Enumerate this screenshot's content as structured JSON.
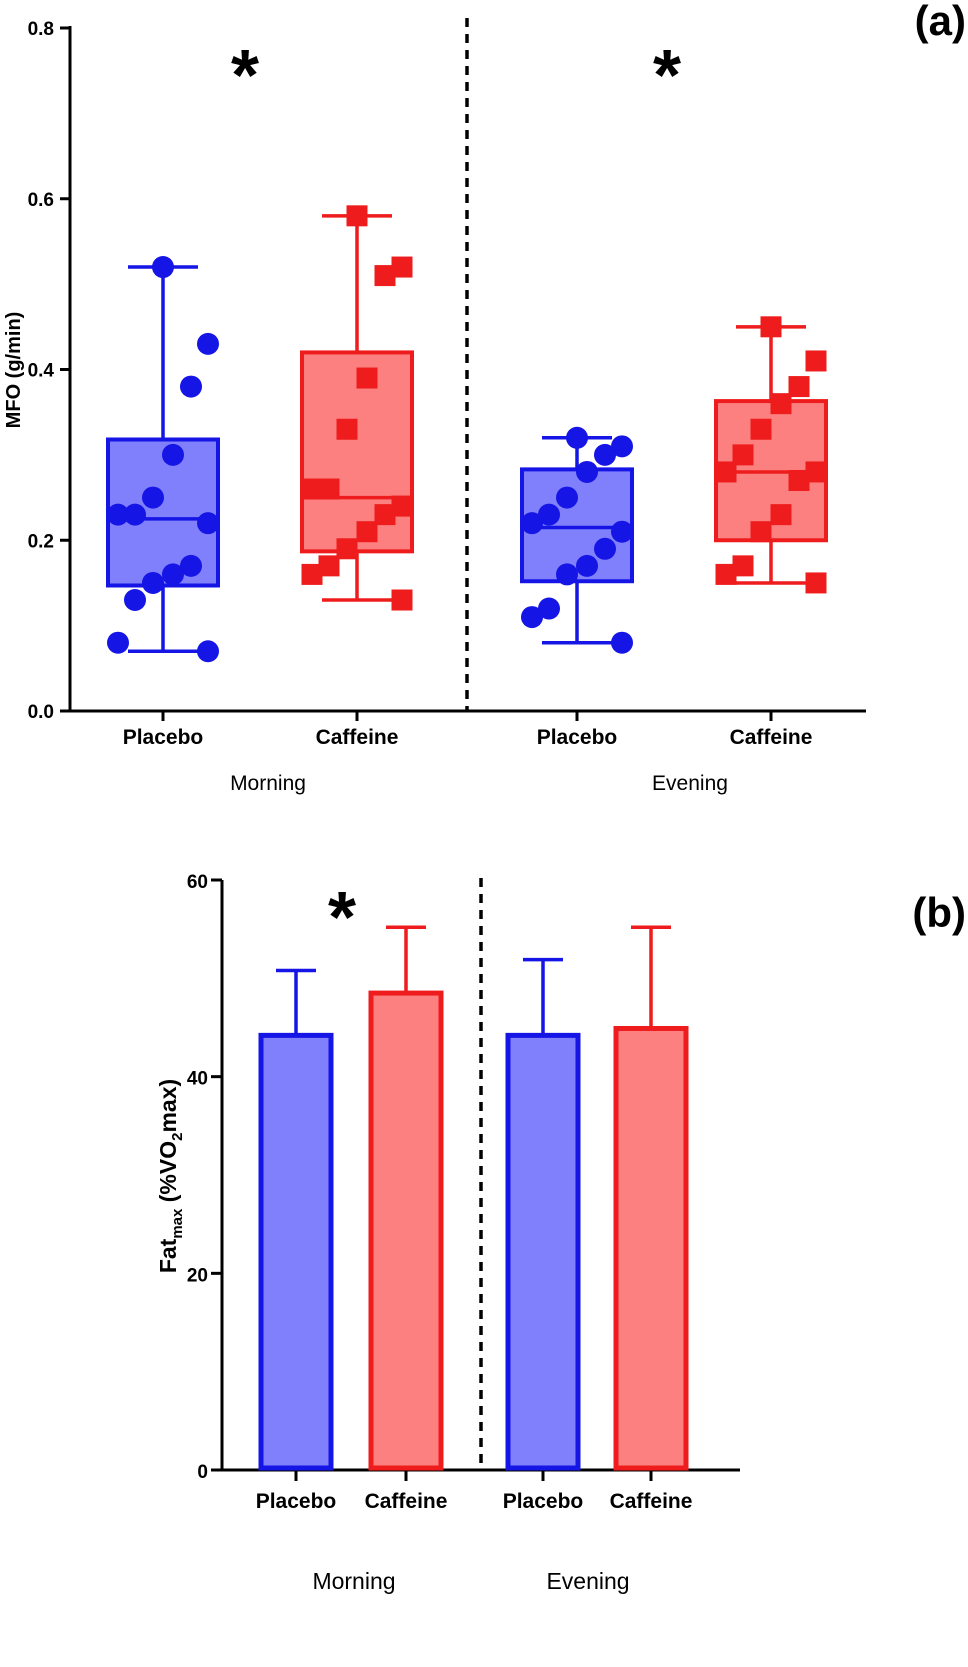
{
  "chart_data": [
    {
      "type": "box",
      "panel_label": "(a)",
      "ylabel": "MFO (g/min)",
      "ylim": [
        0,
        0.8
      ],
      "yticks": [
        "0.0",
        "0.2",
        "0.4",
        "0.6",
        "0.8"
      ],
      "categories": [
        "Placebo",
        "Caffeine",
        "Placebo",
        "Caffeine"
      ],
      "groups": [
        "Morning",
        "Evening"
      ],
      "significance": [
        "*",
        "*"
      ],
      "colors": {
        "placebo_stroke": "#1515e6",
        "placebo_fill": "#8080fc",
        "caffeine_stroke": "#ee1c1c",
        "caffeine_fill": "#fc8080"
      },
      "series": [
        {
          "name": "Placebo",
          "group": "Morning",
          "min": 0.07,
          "q1": 0.147,
          "median": 0.225,
          "q3": 0.318,
          "max": 0.52,
          "points": [
            0.52,
            0.43,
            0.38,
            0.3,
            0.25,
            0.23,
            0.23,
            0.22,
            0.17,
            0.16,
            0.15,
            0.13,
            0.08,
            0.07
          ]
        },
        {
          "name": "Caffeine",
          "group": "Morning",
          "min": 0.13,
          "q1": 0.187,
          "median": 0.25,
          "q3": 0.42,
          "max": 0.58,
          "points": [
            0.58,
            0.52,
            0.51,
            0.39,
            0.33,
            0.26,
            0.26,
            0.24,
            0.23,
            0.21,
            0.19,
            0.17,
            0.16,
            0.13
          ]
        },
        {
          "name": "Placebo",
          "group": "Evening",
          "min": 0.08,
          "q1": 0.152,
          "median": 0.215,
          "q3": 0.283,
          "max": 0.32,
          "points": [
            0.32,
            0.31,
            0.3,
            0.28,
            0.25,
            0.23,
            0.22,
            0.21,
            0.19,
            0.17,
            0.16,
            0.12,
            0.11,
            0.08
          ]
        },
        {
          "name": "Caffeine",
          "group": "Evening",
          "min": 0.15,
          "q1": 0.2,
          "median": 0.28,
          "q3": 0.363,
          "max": 0.45,
          "points": [
            0.45,
            0.41,
            0.38,
            0.36,
            0.33,
            0.3,
            0.28,
            0.28,
            0.27,
            0.23,
            0.21,
            0.17,
            0.16,
            0.15
          ]
        }
      ]
    },
    {
      "type": "bar",
      "panel_label": "(b)",
      "ylabel_main": "Fat",
      "ylabel_sub": "max",
      "ylabel_rest": " (%VO",
      "ylabel_sub2": "2",
      "ylabel_end": "max)",
      "ylim": [
        0,
        60
      ],
      "yticks": [
        "0",
        "20",
        "40",
        "60"
      ],
      "categories": [
        "Placebo",
        "Caffeine",
        "Placebo",
        "Caffeine"
      ],
      "groups": [
        "Morning",
        "Evening"
      ],
      "significance": [
        "*"
      ],
      "colors": {
        "placebo_stroke": "#1515e6",
        "placebo_fill": "#8080fc",
        "caffeine_stroke": "#ee1c1c",
        "caffeine_fill": "#fc8080"
      },
      "series": [
        {
          "name": "Placebo",
          "group": "Morning",
          "mean": 44.2,
          "error": 6.6
        },
        {
          "name": "Caffeine",
          "group": "Morning",
          "mean": 48.5,
          "error": 6.7
        },
        {
          "name": "Placebo",
          "group": "Evening",
          "mean": 44.2,
          "error": 7.7
        },
        {
          "name": "Caffeine",
          "group": "Evening",
          "mean": 44.9,
          "error": 10.3
        }
      ]
    }
  ]
}
